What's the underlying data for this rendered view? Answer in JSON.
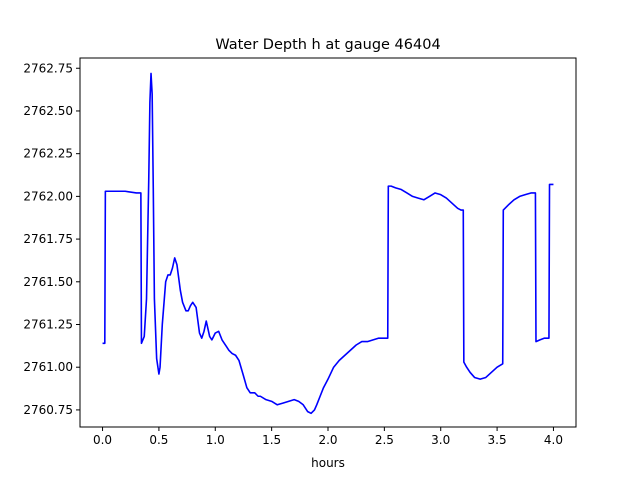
{
  "chart_data": {
    "type": "line",
    "title": "Water Depth h at gauge 46404",
    "xlabel": "hours",
    "ylabel": "",
    "xlim": [
      -0.2,
      4.2
    ],
    "ylim": [
      2760.65,
      2762.81
    ],
    "xticks": [
      0.0,
      0.5,
      1.0,
      1.5,
      2.0,
      2.5,
      3.0,
      3.5,
      4.0
    ],
    "xtick_labels": [
      "0.0",
      "0.5",
      "1.0",
      "1.5",
      "2.0",
      "2.5",
      "3.0",
      "3.5",
      "4.0"
    ],
    "yticks": [
      2760.75,
      2761.0,
      2761.25,
      2761.5,
      2761.75,
      2762.0,
      2762.25,
      2762.5,
      2762.75
    ],
    "ytick_labels": [
      "2760.75",
      "2761.00",
      "2761.25",
      "2761.50",
      "2761.75",
      "2762.00",
      "2762.25",
      "2762.50",
      "2762.75"
    ],
    "grid": false,
    "series": [
      {
        "color": "#0000ff",
        "x": [
          0.0,
          0.02,
          0.025,
          0.1,
          0.2,
          0.3,
          0.33,
          0.34,
          0.345,
          0.37,
          0.39,
          0.41,
          0.42,
          0.43,
          0.44,
          0.45,
          0.46,
          0.48,
          0.5,
          0.51,
          0.53,
          0.56,
          0.58,
          0.6,
          0.62,
          0.64,
          0.66,
          0.67,
          0.68,
          0.69,
          0.71,
          0.74,
          0.76,
          0.78,
          0.8,
          0.83,
          0.86,
          0.88,
          0.9,
          0.92,
          0.95,
          0.97,
          1.0,
          1.03,
          1.06,
          1.08,
          1.1,
          1.12,
          1.15,
          1.18,
          1.21,
          1.25,
          1.28,
          1.31,
          1.35,
          1.38,
          1.4,
          1.45,
          1.5,
          1.55,
          1.6,
          1.65,
          1.7,
          1.74,
          1.78,
          1.82,
          1.85,
          1.88,
          1.9,
          1.93,
          1.96,
          2.0,
          2.05,
          2.1,
          2.15,
          2.2,
          2.25,
          2.3,
          2.35,
          2.4,
          2.45,
          2.5,
          2.53,
          2.535,
          2.56,
          2.6,
          2.65,
          2.7,
          2.75,
          2.8,
          2.85,
          2.9,
          2.95,
          3.0,
          3.05,
          3.1,
          3.15,
          3.18,
          3.2,
          3.205,
          3.23,
          3.26,
          3.3,
          3.35,
          3.4,
          3.45,
          3.5,
          3.55,
          3.555,
          3.6,
          3.65,
          3.7,
          3.75,
          3.8,
          3.84,
          3.845,
          3.88,
          3.92,
          3.96,
          3.965,
          3.98,
          4.0
        ],
        "y": [
          2761.14,
          2761.14,
          2762.03,
          2762.03,
          2762.03,
          2762.02,
          2762.02,
          2762.02,
          2761.14,
          2761.18,
          2761.4,
          2762.1,
          2762.55,
          2762.72,
          2762.6,
          2762.05,
          2761.4,
          2761.05,
          2760.96,
          2761.0,
          2761.25,
          2761.5,
          2761.54,
          2761.54,
          2761.58,
          2761.64,
          2761.6,
          2761.55,
          2761.5,
          2761.45,
          2761.38,
          2761.33,
          2761.33,
          2761.36,
          2761.38,
          2761.35,
          2761.2,
          2761.17,
          2761.21,
          2761.27,
          2761.18,
          2761.16,
          2761.2,
          2761.21,
          2761.16,
          2761.14,
          2761.12,
          2761.1,
          2761.08,
          2761.07,
          2761.04,
          2760.95,
          2760.88,
          2760.85,
          2760.85,
          2760.83,
          2760.83,
          2760.81,
          2760.8,
          2760.78,
          2760.79,
          2760.8,
          2760.81,
          2760.8,
          2760.78,
          2760.74,
          2760.73,
          2760.75,
          2760.78,
          2760.83,
          2760.88,
          2760.93,
          2761.0,
          2761.04,
          2761.07,
          2761.1,
          2761.13,
          2761.15,
          2761.15,
          2761.16,
          2761.17,
          2761.17,
          2761.17,
          2762.06,
          2762.06,
          2762.05,
          2762.04,
          2762.02,
          2762.0,
          2761.99,
          2761.98,
          2762.0,
          2762.02,
          2762.01,
          2761.99,
          2761.96,
          2761.93,
          2761.92,
          2761.92,
          2761.03,
          2761.0,
          2760.97,
          2760.94,
          2760.93,
          2760.94,
          2760.97,
          2761.0,
          2761.02,
          2761.92,
          2761.95,
          2761.98,
          2762.0,
          2762.01,
          2762.02,
          2762.02,
          2761.15,
          2761.16,
          2761.17,
          2761.17,
          2762.07,
          2762.07,
          2762.07
        ]
      }
    ]
  }
}
